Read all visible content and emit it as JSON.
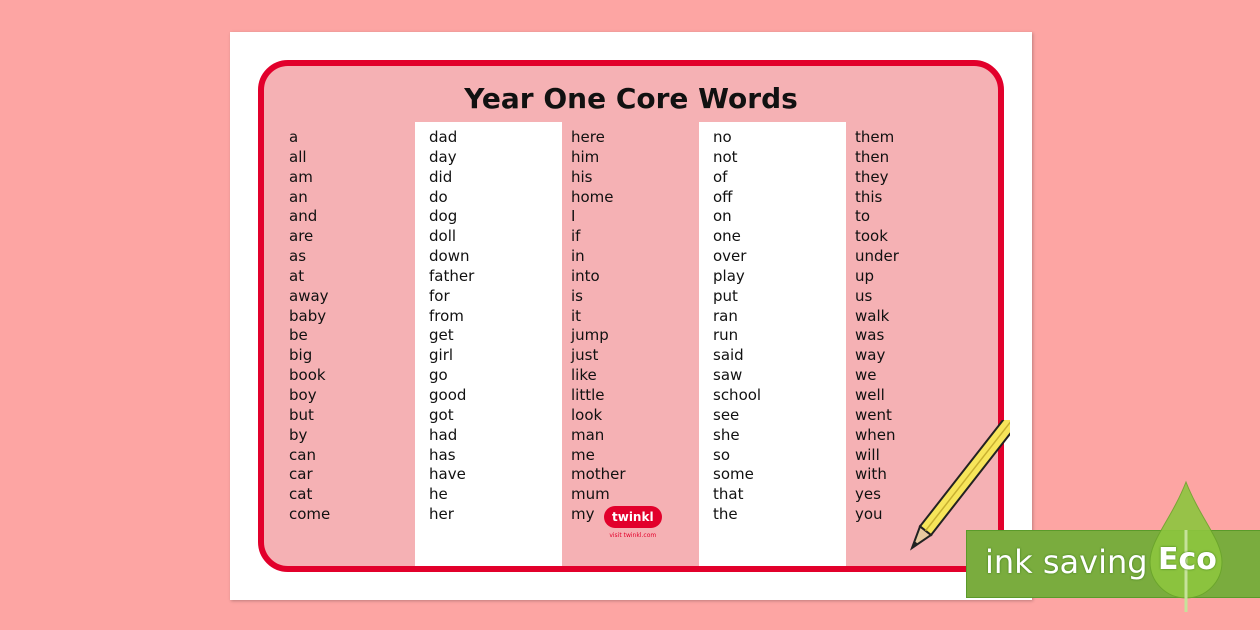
{
  "title": "Year One Core Words",
  "columns": [
    [
      "a",
      "all",
      "am",
      "an",
      "and",
      "are",
      "as",
      "at",
      "away",
      "baby",
      "be",
      "big",
      "book",
      "boy",
      "but",
      "by",
      "can",
      "car",
      "cat",
      "come"
    ],
    [
      "dad",
      "day",
      "did",
      "do",
      "dog",
      "doll",
      "down",
      "father",
      "for",
      "from",
      "get",
      "girl",
      "go",
      "good",
      "got",
      "had",
      "has",
      "have",
      "he",
      "her"
    ],
    [
      "here",
      "him",
      "his",
      "home",
      "I",
      "if",
      "in",
      "into",
      "is",
      "it",
      "jump",
      "just",
      "like",
      "little",
      "look",
      "man",
      "me",
      "mother",
      "mum",
      "my"
    ],
    [
      "no",
      "not",
      "of",
      "off",
      "on",
      "one",
      "over",
      "play",
      "put",
      "ran",
      "run",
      "said",
      "saw",
      "school",
      "see",
      "she",
      "so",
      "some",
      "that",
      "the"
    ],
    [
      "them",
      "then",
      "they",
      "this",
      "to",
      "took",
      "under",
      "up",
      "us",
      "walk",
      "was",
      "way",
      "we",
      "well",
      "went",
      "when",
      "will",
      "with",
      "yes",
      "you"
    ]
  ],
  "logo": {
    "name": "twinkl",
    "visit": "visit twinkl.com"
  },
  "badge": {
    "ink_label": "ink saving",
    "eco_label": "Eco"
  },
  "colors": {
    "background": "#fda5a3",
    "frame": "#e2002b",
    "panel": "#f5b1b4",
    "eco_green": "#7aac3e"
  }
}
